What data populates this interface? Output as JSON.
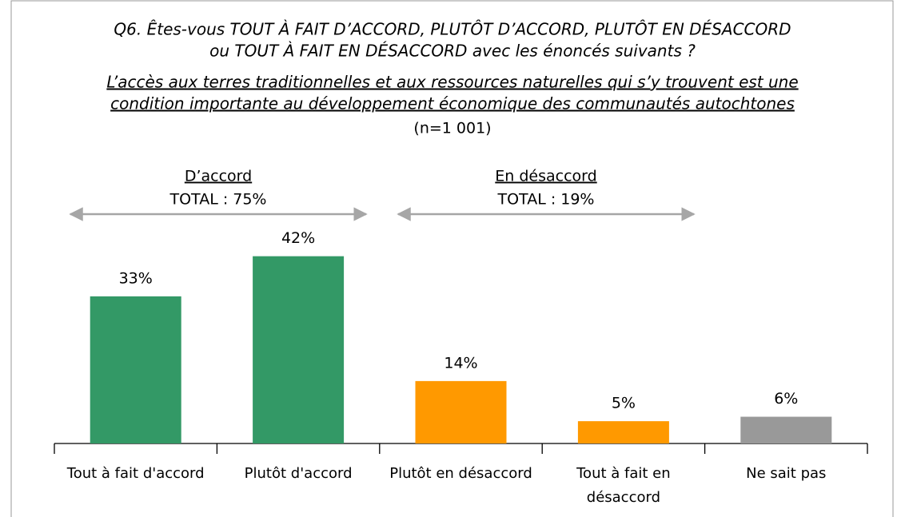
{
  "chart_data": {
    "type": "bar",
    "title": [
      "Q6. Êtes-vous TOUT À FAIT D’ACCORD, PLUTÔT D’ACCORD, PLUTÔT EN DÉSACCORD",
      "ou TOUT À FAIT EN DÉSACCORD avec les énoncés suivants ?"
    ],
    "subtitle": [
      "L’accès aux terres traditionnelles et aux ressources naturelles qui s’y trouvent est une",
      "condition importante au développement économique des communautés autochtones"
    ],
    "note": "(n=1 001)",
    "groups": [
      {
        "name": "D’accord",
        "total": "TOTAL : 75%"
      },
      {
        "name": "En désaccord",
        "total": "TOTAL : 19%"
      }
    ],
    "categories": [
      "Tout à fait d'accord",
      "Plutôt d'accord",
      "Plutôt en désaccord",
      "Tout à fait en désaccord",
      "Ne sait pas"
    ],
    "values": [
      33,
      42,
      14,
      5,
      6
    ],
    "value_labels": [
      "33%",
      "42%",
      "14%",
      "5%",
      "6%"
    ],
    "colors": [
      "#339966",
      "#339966",
      "#ff9900",
      "#ff9900",
      "#999999"
    ]
  }
}
